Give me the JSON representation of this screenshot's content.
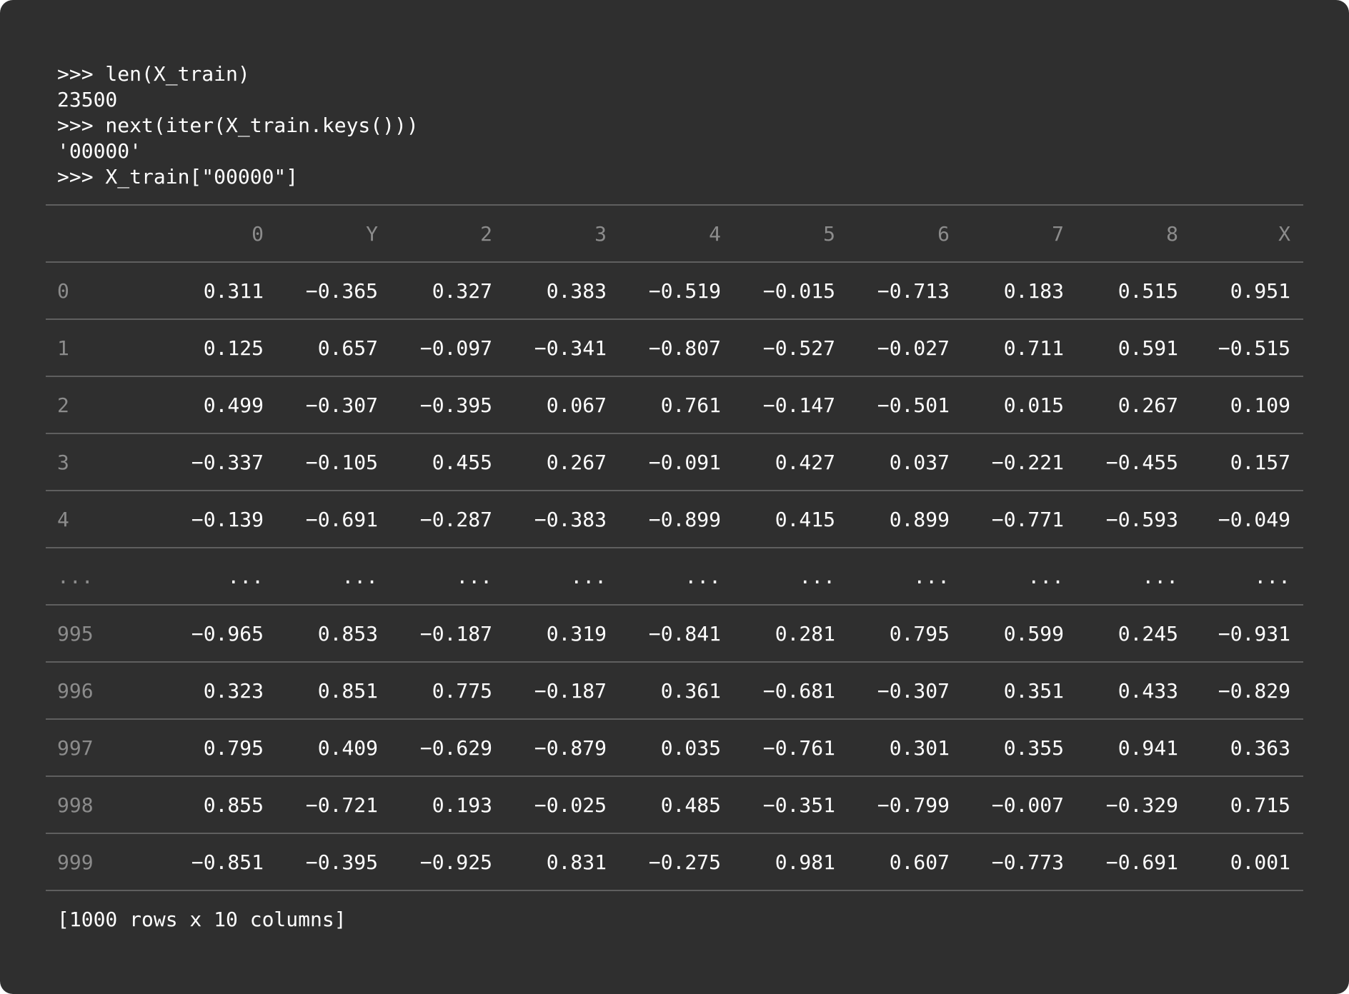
{
  "console": {
    "lines": [
      ">>> len(X_train)",
      "23500",
      ">>> next(iter(X_train.keys()))",
      "'00000'",
      ">>> X_train[\"00000\"]"
    ]
  },
  "table": {
    "index_header": "",
    "columns": [
      "0",
      "Y",
      "2",
      "3",
      "4",
      "5",
      "6",
      "7",
      "8",
      "X"
    ],
    "rows": [
      {
        "index": "0",
        "values": [
          "0.311",
          "−0.365",
          "0.327",
          "0.383",
          "−0.519",
          "−0.015",
          "−0.713",
          "0.183",
          "0.515",
          "0.951"
        ]
      },
      {
        "index": "1",
        "values": [
          "0.125",
          "0.657",
          "−0.097",
          "−0.341",
          "−0.807",
          "−0.527",
          "−0.027",
          "0.711",
          "0.591",
          "−0.515"
        ]
      },
      {
        "index": "2",
        "values": [
          "0.499",
          "−0.307",
          "−0.395",
          "0.067",
          "0.761",
          "−0.147",
          "−0.501",
          "0.015",
          "0.267",
          "0.109"
        ]
      },
      {
        "index": "3",
        "values": [
          "−0.337",
          "−0.105",
          "0.455",
          "0.267",
          "−0.091",
          "0.427",
          "0.037",
          "−0.221",
          "−0.455",
          "0.157"
        ]
      },
      {
        "index": "4",
        "values": [
          "−0.139",
          "−0.691",
          "−0.287",
          "−0.383",
          "−0.899",
          "0.415",
          "0.899",
          "−0.771",
          "−0.593",
          "−0.049"
        ]
      },
      {
        "index": "...",
        "values": [
          "...",
          "...",
          "...",
          "...",
          "...",
          "...",
          "...",
          "...",
          "...",
          "..."
        ]
      },
      {
        "index": "995",
        "values": [
          "−0.965",
          "0.853",
          "−0.187",
          "0.319",
          "−0.841",
          "0.281",
          "0.795",
          "0.599",
          "0.245",
          "−0.931"
        ]
      },
      {
        "index": "996",
        "values": [
          "0.323",
          "0.851",
          "0.775",
          "−0.187",
          "0.361",
          "−0.681",
          "−0.307",
          "0.351",
          "0.433",
          "−0.829"
        ]
      },
      {
        "index": "997",
        "values": [
          "0.795",
          "0.409",
          "−0.629",
          "−0.879",
          "0.035",
          "−0.761",
          "0.301",
          "0.355",
          "0.941",
          "0.363"
        ]
      },
      {
        "index": "998",
        "values": [
          "0.855",
          "−0.721",
          "0.193",
          "−0.025",
          "0.485",
          "−0.351",
          "−0.799",
          "−0.007",
          "−0.329",
          "0.715"
        ]
      },
      {
        "index": "999",
        "values": [
          "−0.851",
          "−0.395",
          "−0.925",
          "0.831",
          "−0.275",
          "0.981",
          "0.607",
          "−0.773",
          "−0.691",
          "0.001"
        ]
      }
    ]
  },
  "footer": {
    "summary": "[1000 rows x 10 columns]"
  },
  "colors": {
    "background": "#2f2f2f",
    "text": "#ffffff",
    "muted": "#8c8c8c",
    "rule": "#5f5f5f"
  }
}
